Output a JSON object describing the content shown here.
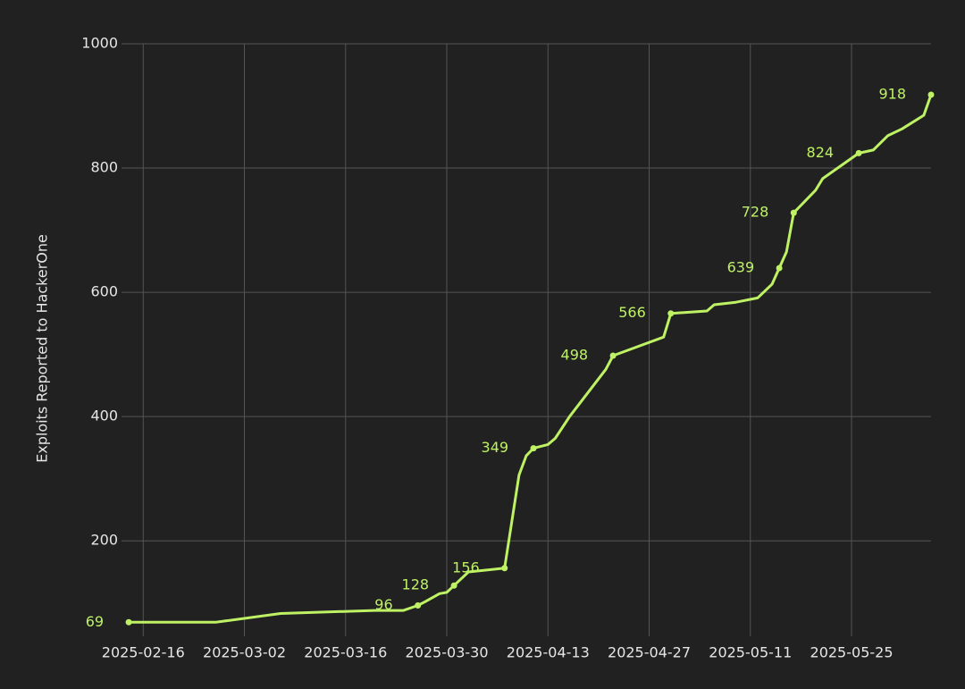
{
  "chart_data": {
    "type": "line",
    "y_label": "Exploits Reported to HackerOne",
    "x": [
      "2025-02-14",
      "2025-02-26",
      "2025-03-07",
      "2025-03-20",
      "2025-03-24",
      "2025-03-26",
      "2025-03-27",
      "2025-03-29",
      "2025-03-30",
      "2025-03-31",
      "2025-04-02",
      "2025-04-07",
      "2025-04-09",
      "2025-04-10",
      "2025-04-11",
      "2025-04-13",
      "2025-04-14",
      "2025-04-16",
      "2025-04-21",
      "2025-04-22",
      "2025-04-29",
      "2025-04-30",
      "2025-05-05",
      "2025-05-06",
      "2025-05-09",
      "2025-05-12",
      "2025-05-14",
      "2025-05-15",
      "2025-05-16",
      "2025-05-17",
      "2025-05-20",
      "2025-05-21",
      "2025-05-26",
      "2025-05-28",
      "2025-05-30",
      "2025-06-01",
      "2025-06-04",
      "2025-06-05"
    ],
    "values": [
      69,
      69,
      83,
      88,
      88,
      96,
      102,
      115,
      117,
      128,
      150,
      156,
      306,
      337,
      349,
      355,
      365,
      400,
      476,
      498,
      528,
      566,
      570,
      580,
      584,
      591,
      613,
      639,
      665,
      728,
      764,
      783,
      824,
      829,
      852,
      863,
      885,
      918
    ],
    "label_points": [
      true,
      false,
      false,
      false,
      false,
      true,
      false,
      false,
      false,
      true,
      false,
      true,
      false,
      false,
      true,
      false,
      false,
      false,
      false,
      true,
      false,
      true,
      false,
      false,
      false,
      false,
      false,
      true,
      false,
      true,
      false,
      false,
      true,
      false,
      false,
      false,
      false,
      true
    ],
    "color": "#bef264",
    "xlim": [
      "2025-02-13",
      "2025-06-05"
    ],
    "xticks": [
      "2025-02-16",
      "2025-03-02",
      "2025-03-16",
      "2025-03-30",
      "2025-04-13",
      "2025-04-27",
      "2025-05-11",
      "2025-05-25"
    ],
    "ylim": [
      55,
      1000
    ],
    "yticks": [
      200,
      400,
      600,
      800,
      1000
    ],
    "grid": true
  }
}
